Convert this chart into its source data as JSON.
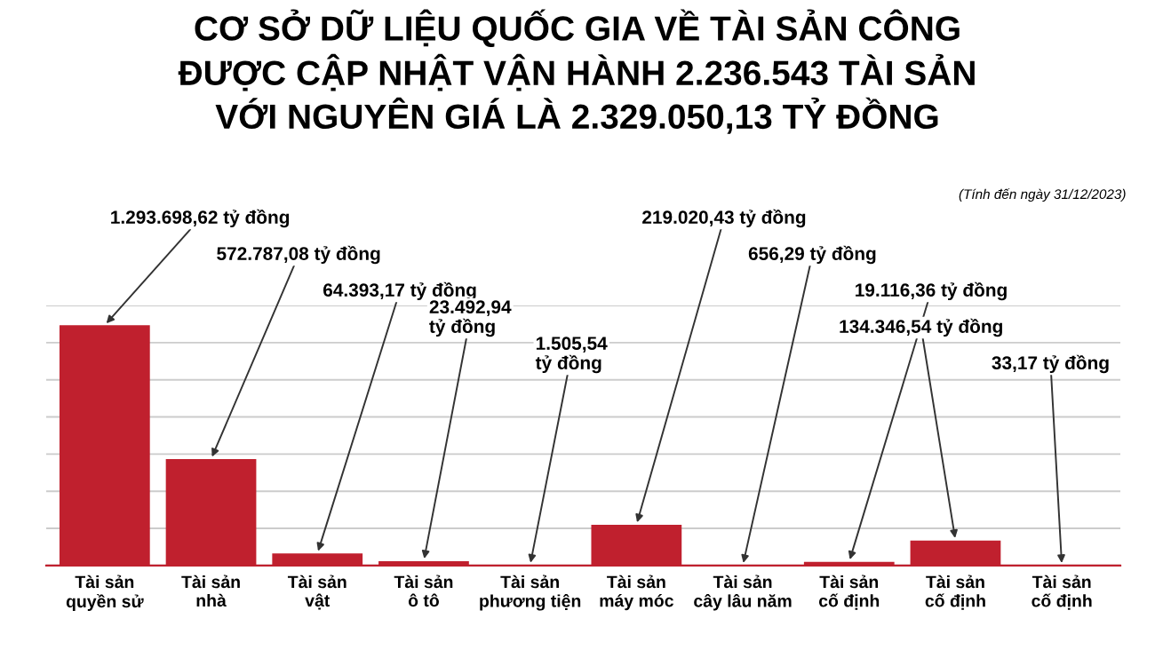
{
  "chart_data": {
    "type": "bar",
    "title": "CƠ SỞ DỮ LIỆU QUỐC GIA VỀ TÀI SẢN CÔNG\nĐƯỢC CẬP NHẬT VẬN HÀNH 2.236.543 TÀI SẢN\nVỚI NGUYÊN GIÁ LÀ 2.329.050,13 TỶ ĐỒNG",
    "subtitle": "(Tính đến ngày 31/12/2023)",
    "categories": [
      "Tài sản\nquyền sử",
      "Tài sản\nnhà",
      "Tài sản\nvật",
      "Tài sản\nô tô",
      "Tài sản\nphương tiện",
      "Tài sản\nmáy móc",
      "Tài sản\ncây lâu năm",
      "Tài sản\ncố định",
      "Tài sản\ncố định",
      "Tài sản\ncố định"
    ],
    "values": [
      1293698.62,
      572787.08,
      64393.17,
      23492.94,
      1505.54,
      219020.43,
      656.29,
      19116.36,
      134346.54,
      33.17
    ],
    "value_labels": [
      "1.293.698,62 tỷ đồng",
      "572.787,08 tỷ đồng",
      "64.393,17 tỷ đồng",
      "23.492,94\ntỷ đồng",
      "1.505,54\ntỷ đồng",
      "219.020,43 tỷ đồng",
      "656,29 tỷ đồng",
      "19.116,36 tỷ đồng",
      "134.346,54 tỷ đồng",
      "33,17 tỷ đồng"
    ],
    "color": "#c0202e",
    "ylim": [
      0,
      1400000
    ],
    "yticks": [
      {
        "value": 0,
        "label": null
      },
      {
        "value": 200000,
        "label": null
      },
      {
        "value": 400000,
        "label": null
      },
      {
        "value": 600000,
        "label": null
      },
      {
        "value": 800000,
        "label": null
      },
      {
        "value": 1000000,
        "label": null
      },
      {
        "value": 1200000,
        "label": null
      },
      {
        "value": 1400000,
        "label": null
      }
    ],
    "tick_labels": "x",
    "grid": "y"
  }
}
